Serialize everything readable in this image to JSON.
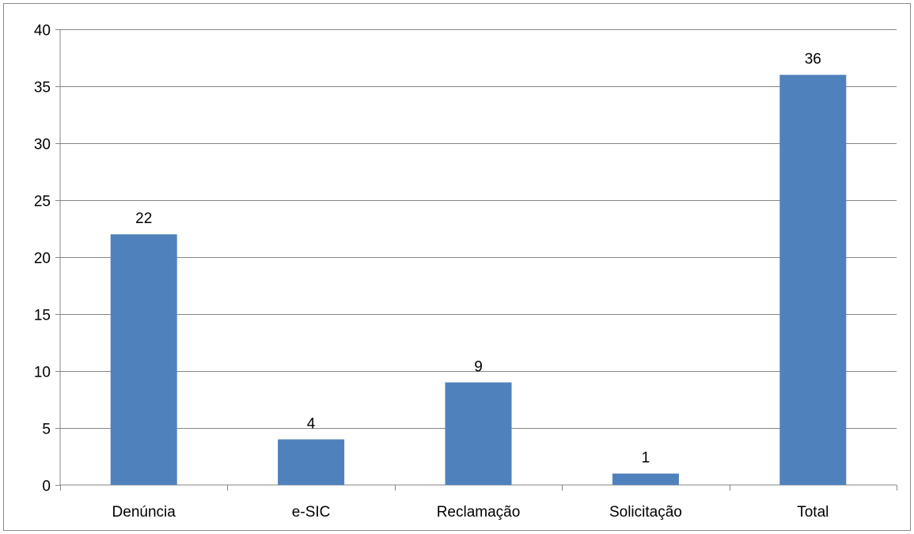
{
  "chart_data": {
    "type": "bar",
    "title": "",
    "xlabel": "",
    "ylabel": "",
    "categories": [
      "Denúncia",
      "e-SIC",
      "Reclamação",
      "Solicitação",
      "Total"
    ],
    "values": [
      22,
      4,
      9,
      1,
      36
    ],
    "data_labels": [
      "22",
      "4",
      "9",
      "1",
      "36"
    ],
    "ylim": [
      0,
      40
    ],
    "yticks": [
      0,
      5,
      10,
      15,
      20,
      25,
      30,
      35,
      40
    ],
    "ytick_labels": [
      "0",
      "5",
      "10",
      "15",
      "20",
      "25",
      "30",
      "35",
      "40"
    ],
    "grid": true,
    "legend": "none",
    "bar_color": "#4f81bd",
    "grid_color": "#868686"
  }
}
